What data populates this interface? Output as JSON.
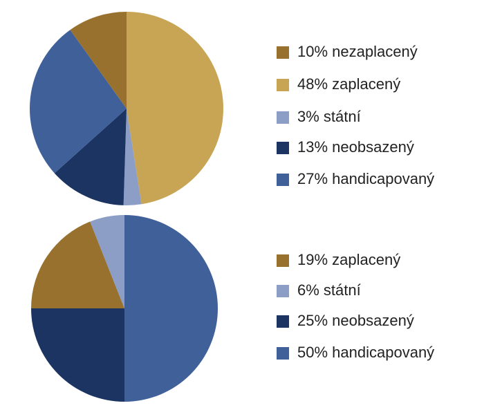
{
  "chart_data": [
    {
      "type": "pie",
      "categories": [
        "nezaplacený",
        "zaplacený",
        "státní",
        "neobsazený",
        "handicapovaný"
      ],
      "values": [
        10,
        48,
        3,
        13,
        27
      ],
      "value_labels": [
        "10%",
        "48%",
        "3%",
        "13%",
        "27%"
      ],
      "colors": [
        "#98712f",
        "#c8a455",
        "#8c9ec6",
        "#1c3462",
        "#40609a"
      ]
    },
    {
      "type": "pie",
      "categories": [
        "zaplacený",
        "státní",
        "neobsazený",
        "handicapovaný"
      ],
      "values": [
        19,
        6,
        25,
        50
      ],
      "value_labels": [
        "19%",
        "6%",
        "25%",
        "50%"
      ],
      "colors": [
        "#98712f",
        "#8c9ec6",
        "#1c3462",
        "#40609a"
      ]
    }
  ]
}
